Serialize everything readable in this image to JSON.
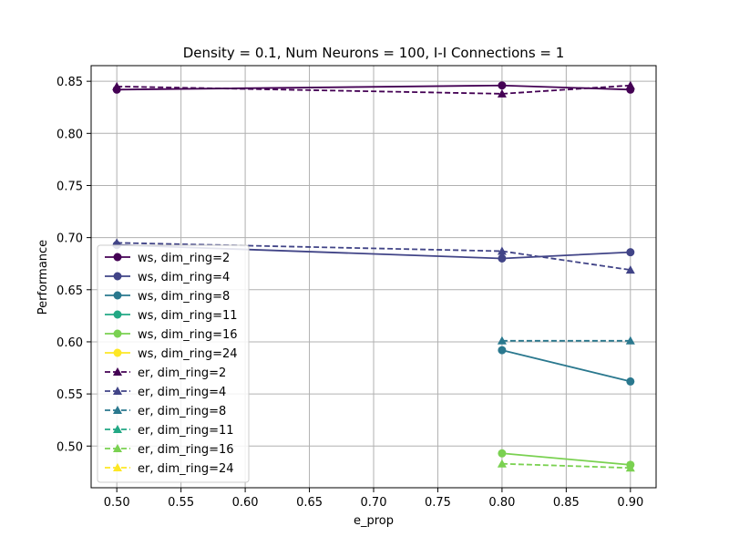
{
  "chart_data": {
    "type": "line",
    "title": "Density = 0.1, Num Neurons = 100, I-I Connections = 1",
    "xlabel": "e_prop",
    "ylabel": "Performance",
    "xlim": [
      0.48,
      0.92
    ],
    "ylim": [
      0.46,
      0.865
    ],
    "xticks": [
      0.5,
      0.55,
      0.6,
      0.65,
      0.7,
      0.75,
      0.8,
      0.85,
      0.9
    ],
    "xtick_labels": [
      "0.50",
      "0.55",
      "0.60",
      "0.65",
      "0.70",
      "0.75",
      "0.80",
      "0.85",
      "0.90"
    ],
    "yticks": [
      0.5,
      0.55,
      0.6,
      0.65,
      0.7,
      0.75,
      0.8,
      0.85
    ],
    "ytick_labels": [
      "0.50",
      "0.55",
      "0.60",
      "0.65",
      "0.70",
      "0.75",
      "0.80",
      "0.85"
    ],
    "grid": true,
    "legend_position": "lower-left",
    "series": [
      {
        "name": "ws, dim_ring=2",
        "color": "#440154",
        "marker": "circle",
        "linestyle": "solid",
        "x": [
          0.5,
          0.8,
          0.9
        ],
        "y": [
          0.842,
          0.846,
          0.842
        ]
      },
      {
        "name": "ws, dim_ring=4",
        "color": "#414487",
        "marker": "circle",
        "linestyle": "solid",
        "x": [
          0.5,
          0.8,
          0.9
        ],
        "y": [
          0.693,
          0.68,
          0.686
        ]
      },
      {
        "name": "ws, dim_ring=8",
        "color": "#2a788e",
        "marker": "circle",
        "linestyle": "solid",
        "x": [
          0.8,
          0.9
        ],
        "y": [
          0.592,
          0.562
        ]
      },
      {
        "name": "ws, dim_ring=11",
        "color": "#22a884",
        "marker": "circle",
        "linestyle": "solid",
        "x": [],
        "y": []
      },
      {
        "name": "ws, dim_ring=16",
        "color": "#7ad151",
        "marker": "circle",
        "linestyle": "solid",
        "x": [
          0.8,
          0.9
        ],
        "y": [
          0.493,
          0.482
        ]
      },
      {
        "name": "ws, dim_ring=24",
        "color": "#fde725",
        "marker": "circle",
        "linestyle": "solid",
        "x": [],
        "y": []
      },
      {
        "name": "er, dim_ring=2",
        "color": "#440154",
        "marker": "triangle",
        "linestyle": "dashed",
        "x": [
          0.5,
          0.8,
          0.9
        ],
        "y": [
          0.845,
          0.838,
          0.846
        ]
      },
      {
        "name": "er, dim_ring=4",
        "color": "#414487",
        "marker": "triangle",
        "linestyle": "dashed",
        "x": [
          0.5,
          0.8,
          0.9
        ],
        "y": [
          0.695,
          0.687,
          0.669
        ]
      },
      {
        "name": "er, dim_ring=8",
        "color": "#2a788e",
        "marker": "triangle",
        "linestyle": "dashed",
        "x": [
          0.8,
          0.9
        ],
        "y": [
          0.601,
          0.601
        ]
      },
      {
        "name": "er, dim_ring=11",
        "color": "#22a884",
        "marker": "triangle",
        "linestyle": "dashed",
        "x": [],
        "y": []
      },
      {
        "name": "er, dim_ring=16",
        "color": "#7ad151",
        "marker": "triangle",
        "linestyle": "dashed",
        "x": [
          0.8,
          0.9
        ],
        "y": [
          0.483,
          0.479
        ]
      },
      {
        "name": "er, dim_ring=24",
        "color": "#fde725",
        "marker": "triangle",
        "linestyle": "dashed",
        "x": [],
        "y": []
      }
    ]
  }
}
